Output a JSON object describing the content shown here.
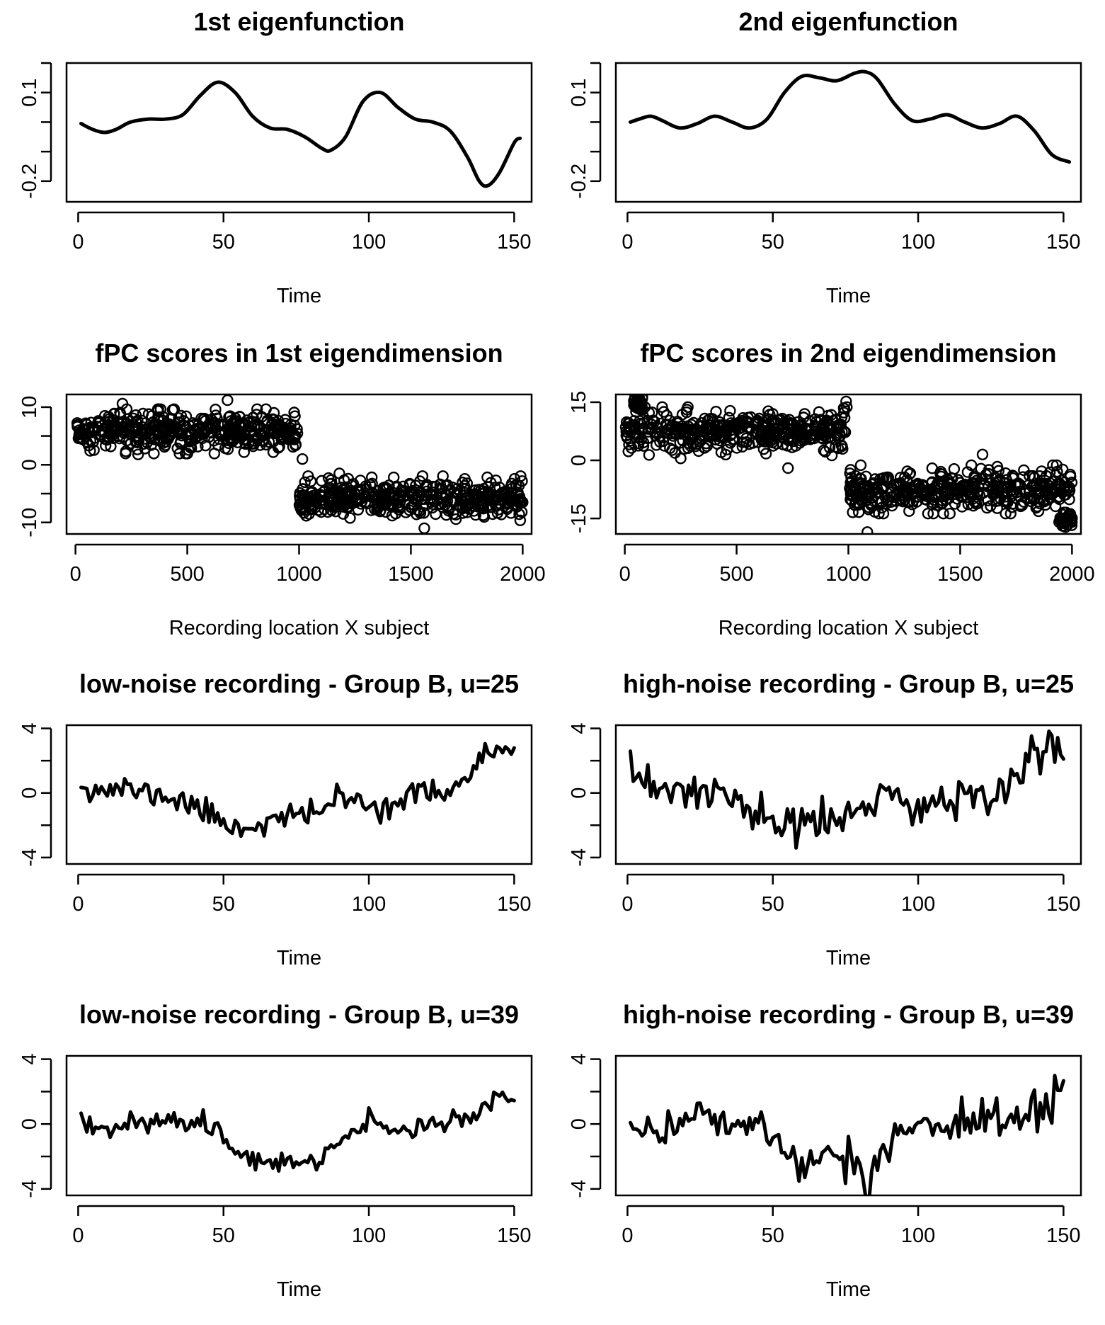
{
  "figure": {
    "layout": "4 rows x 2 columns of R base-graphics panels",
    "line_color": "#000000",
    "background": "#ffffff"
  },
  "chart_data": [
    {
      "id": "eig1",
      "type": "line",
      "title": "1st eigenfunction",
      "xlabel": "Time",
      "ylabel": "",
      "xlim": [
        -4,
        156
      ],
      "ylim": [
        -0.27,
        0.2
      ],
      "x_ticks": [
        0,
        50,
        100,
        150
      ],
      "y_ticks": [
        -0.2,
        -0.1,
        0,
        0.1,
        0.2
      ],
      "y_tick_labels": [
        "-0.2",
        "",
        "",
        "0.1",
        ""
      ],
      "series": [
        {
          "name": "eigenfunction 1",
          "x": [
            1,
            5,
            9,
            13,
            18,
            24,
            30,
            36,
            42,
            48,
            54,
            60,
            66,
            72,
            78,
            84,
            87,
            92,
            98,
            104,
            110,
            116,
            122,
            128,
            134,
            138,
            141,
            145,
            150,
            152
          ],
          "y": [
            -0.005,
            -0.025,
            -0.035,
            -0.025,
            0.0,
            0.01,
            0.01,
            0.025,
            0.09,
            0.135,
            0.1,
            0.02,
            -0.02,
            -0.025,
            -0.05,
            -0.09,
            -0.095,
            -0.05,
            0.07,
            0.1,
            0.05,
            0.01,
            0.0,
            -0.03,
            -0.12,
            -0.2,
            -0.215,
            -0.17,
            -0.07,
            -0.055
          ]
        }
      ]
    },
    {
      "id": "eig2",
      "type": "line",
      "title": "2nd eigenfunction",
      "xlabel": "Time",
      "ylabel": "",
      "xlim": [
        -4,
        156
      ],
      "ylim": [
        -0.27,
        0.2
      ],
      "x_ticks": [
        0,
        50,
        100,
        150
      ],
      "y_ticks": [
        -0.2,
        -0.1,
        0,
        0.1,
        0.2
      ],
      "y_tick_labels": [
        "-0.2",
        "",
        "",
        "0.1",
        ""
      ],
      "series": [
        {
          "name": "eigenfunction 2",
          "x": [
            1,
            4,
            8,
            12,
            18,
            24,
            30,
            36,
            42,
            48,
            54,
            60,
            66,
            72,
            78,
            82,
            86,
            92,
            98,
            104,
            110,
            116,
            122,
            128,
            134,
            140,
            146,
            152
          ],
          "y": [
            0.0,
            0.01,
            0.02,
            0.005,
            -0.02,
            -0.005,
            0.02,
            0.0,
            -0.02,
            0.01,
            0.1,
            0.155,
            0.15,
            0.14,
            0.165,
            0.17,
            0.145,
            0.06,
            0.005,
            0.01,
            0.025,
            0.0,
            -0.02,
            -0.005,
            0.02,
            -0.03,
            -0.11,
            -0.135
          ]
        }
      ]
    },
    {
      "id": "scores1",
      "type": "scatter",
      "title": "fPC scores in 1st eigendimension",
      "xlabel": "Recording location X subject",
      "ylabel": "",
      "xlim": [
        -40,
        2040
      ],
      "ylim": [
        -12,
        12.2
      ],
      "x_ticks": [
        0,
        500,
        1000,
        1500,
        2000
      ],
      "y_ticks": [
        -10,
        -5,
        0,
        5,
        10
      ],
      "y_tick_labels": [
        "-10",
        "",
        "0",
        "",
        "10"
      ],
      "groups": [
        {
          "name": "first 1000",
          "x_range": [
            1,
            1000
          ],
          "mean": 5.8,
          "sd": 1.6,
          "n": 420
        },
        {
          "name": "last 1000",
          "x_range": [
            1001,
            2000
          ],
          "mean": -5.8,
          "sd": 1.6,
          "n": 420
        }
      ],
      "outliers": [
        {
          "x": 680,
          "y": 11.2
        },
        {
          "x": 210,
          "y": 10.6
        },
        {
          "x": 1015,
          "y": 1.0
        },
        {
          "x": 1180,
          "y": -1.5
        },
        {
          "x": 1560,
          "y": -11.0
        },
        {
          "x": 280,
          "y": 1.8
        }
      ]
    },
    {
      "id": "scores2",
      "type": "scatter",
      "title": "fPC scores in 2nd eigendimension",
      "xlabel": "Recording location X subject",
      "ylabel": "",
      "xlim": [
        -40,
        2040
      ],
      "ylim": [
        -19,
        17
      ],
      "x_ticks": [
        0,
        500,
        1000,
        1500,
        2000
      ],
      "y_ticks": [
        -15,
        0,
        15
      ],
      "y_tick_labels": [
        "-15",
        "0",
        "15"
      ],
      "groups": [
        {
          "name": "first 1000",
          "x_range": [
            1,
            1000
          ],
          "mean": 7.5,
          "sd": 2.6,
          "n": 420
        },
        {
          "name": "last 1000",
          "x_range": [
            1001,
            2000
          ],
          "mean": -7.5,
          "sd": 2.6,
          "n": 420
        },
        {
          "name": "cluster high",
          "x_range": [
            40,
            80
          ],
          "mean": 14.5,
          "sd": 0.8,
          "n": 40
        },
        {
          "name": "cluster low",
          "x_range": [
            1940,
            2000
          ],
          "mean": -15.3,
          "sd": 0.8,
          "n": 40
        }
      ],
      "outliers": [
        {
          "x": 1085,
          "y": -18.5
        },
        {
          "x": 730,
          "y": -2.0
        },
        {
          "x": 1600,
          "y": 1.5
        },
        {
          "x": 990,
          "y": 15.2
        },
        {
          "x": 250,
          "y": 0.5
        }
      ]
    },
    {
      "id": "low25",
      "type": "line",
      "title": "low-noise recording - Group B, u=25",
      "xlabel": "Time",
      "ylabel": "",
      "xlim": [
        -4,
        156
      ],
      "ylim": [
        -4.4,
        4.2
      ],
      "x_ticks": [
        0,
        50,
        100,
        150
      ],
      "y_ticks": [
        -4,
        -2,
        0,
        2,
        4
      ],
      "y_tick_labels": [
        "-4",
        "",
        "0",
        "",
        "4"
      ],
      "trend": {
        "x": [
          1,
          5,
          10,
          15,
          20,
          30,
          40,
          50,
          56,
          60,
          70,
          80,
          90,
          100,
          110,
          120,
          130,
          135,
          140,
          145,
          150
        ],
        "y": [
          0.8,
          0.2,
          0.2,
          0.3,
          0.1,
          -0.2,
          -0.8,
          -1.8,
          -2.2,
          -2.0,
          -1.6,
          -1.3,
          -0.3,
          -0.8,
          -0.6,
          0.1,
          0.3,
          1.2,
          2.3,
          2.7,
          2.3
        ]
      },
      "noise_sd": 0.4,
      "seed": 11
    },
    {
      "id": "high25",
      "type": "line",
      "title": "high-noise recording - Group B, u=25",
      "xlabel": "Time",
      "ylabel": "",
      "xlim": [
        -4,
        156
      ],
      "ylim": [
        -4.4,
        4.2
      ],
      "x_ticks": [
        0,
        50,
        100,
        150
      ],
      "y_ticks": [
        -4,
        -2,
        0,
        2,
        4
      ],
      "y_tick_labels": [
        "-4",
        "",
        "0",
        "",
        "4"
      ],
      "trend": {
        "x": [
          1,
          5,
          10,
          15,
          20,
          30,
          40,
          50,
          56,
          60,
          70,
          80,
          90,
          100,
          110,
          120,
          130,
          135,
          140,
          145,
          150
        ],
        "y": [
          1.2,
          0.2,
          0.2,
          0.4,
          0.2,
          -0.2,
          -0.8,
          -1.8,
          -2.3,
          -2.0,
          -1.6,
          -1.3,
          -0.3,
          -0.8,
          -0.6,
          0.1,
          0.3,
          1.2,
          2.4,
          2.8,
          2.4
        ]
      },
      "noise_sd": 0.7,
      "seed": 23
    },
    {
      "id": "low39",
      "type": "line",
      "title": "low-noise recording - Group B, u=39",
      "xlabel": "Time",
      "ylabel": "",
      "xlim": [
        -4,
        156
      ],
      "ylim": [
        -4.4,
        4.2
      ],
      "x_ticks": [
        0,
        50,
        100,
        150
      ],
      "y_ticks": [
        -4,
        -2,
        0,
        2,
        4
      ],
      "y_tick_labels": [
        "-4",
        "",
        "0",
        "",
        "4"
      ],
      "trend": {
        "x": [
          1,
          5,
          10,
          20,
          30,
          40,
          47,
          50,
          56,
          60,
          70,
          80,
          83,
          86,
          90,
          95,
          100,
          110,
          120,
          130,
          140,
          146,
          150
        ],
        "y": [
          0.3,
          -0.3,
          -0.2,
          0.3,
          0.2,
          -0.1,
          0.0,
          -1.0,
          -1.8,
          -2.3,
          -2.0,
          -2.3,
          -3.1,
          -1.5,
          -1.0,
          -0.3,
          0.0,
          -0.4,
          0.0,
          0.4,
          0.8,
          1.8,
          1.9
        ]
      },
      "noise_sd": 0.32,
      "seed": 37
    },
    {
      "id": "high39",
      "type": "line",
      "title": "high-noise recording - Group B, u=39",
      "xlabel": "Time",
      "ylabel": "",
      "xlim": [
        -4,
        156
      ],
      "ylim": [
        -4.4,
        4.2
      ],
      "x_ticks": [
        0,
        50,
        100,
        150
      ],
      "y_ticks": [
        -4,
        -2,
        0,
        2,
        4
      ],
      "y_tick_labels": [
        "-4",
        "",
        "0",
        "",
        "4"
      ],
      "trend": {
        "x": [
          1,
          5,
          10,
          20,
          30,
          40,
          47,
          50,
          56,
          60,
          70,
          80,
          83,
          86,
          90,
          95,
          100,
          110,
          120,
          130,
          140,
          146,
          150
        ],
        "y": [
          0.4,
          -0.4,
          -0.3,
          0.4,
          0.3,
          -0.1,
          0.2,
          -1.1,
          -2.2,
          -2.4,
          -2.0,
          -2.5,
          -4.0,
          -1.8,
          -1.1,
          -0.3,
          0.3,
          -0.4,
          0.1,
          0.4,
          0.8,
          1.9,
          2.0
        ]
      },
      "noise_sd": 0.55,
      "seed": 41
    }
  ]
}
